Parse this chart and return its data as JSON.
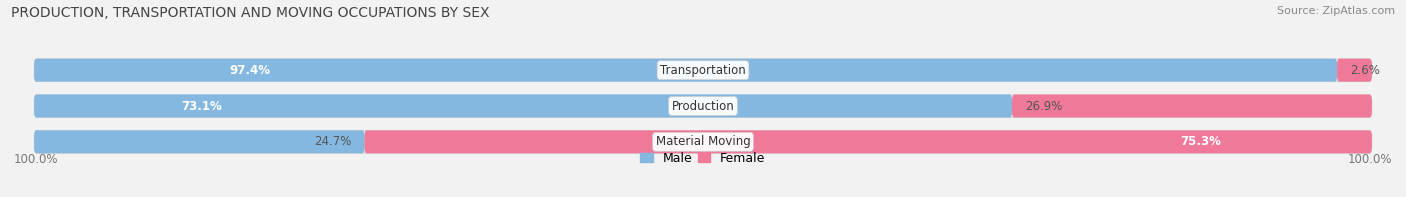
{
  "title": "PRODUCTION, TRANSPORTATION AND MOVING OCCUPATIONS BY SEX",
  "source": "Source: ZipAtlas.com",
  "categories": [
    "Transportation",
    "Production",
    "Material Moving"
  ],
  "male_values": [
    97.4,
    73.1,
    24.7
  ],
  "female_values": [
    2.6,
    26.9,
    75.3
  ],
  "male_color": "#85b8e0",
  "female_color": "#f07898",
  "male_color_light": "#c5d8ee",
  "female_color_light": "#f5b0c0",
  "male_label": "Male",
  "female_label": "Female",
  "bg_color": "#f2f2f2",
  "bar_bg_color": "#e0e0e0",
  "title_fontsize": 10,
  "source_fontsize": 8,
  "pct_fontsize": 8.5,
  "category_fontsize": 8.5,
  "legend_fontsize": 9
}
